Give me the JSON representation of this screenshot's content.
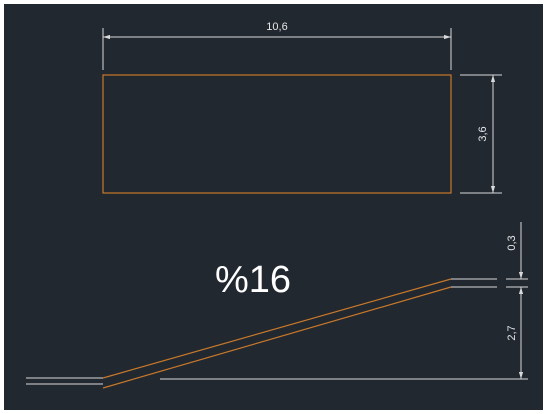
{
  "drawing": {
    "colors": {
      "background": "#212830",
      "dimension": "#d9d9d9",
      "object": "#c8782a",
      "text": "#ffffff"
    },
    "top_view": {
      "width_label": "10,6",
      "height_label": "3,6"
    },
    "section": {
      "slope_label": "%16",
      "thickness_label": "0,3",
      "rise_label": "2,7"
    }
  }
}
